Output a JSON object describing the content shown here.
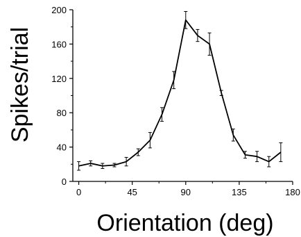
{
  "chart_data": {
    "type": "line",
    "title": "",
    "xlabel": "Orientation (deg)",
    "ylabel": "Spikes/trial",
    "xlim": [
      -5,
      180
    ],
    "ylim": [
      0,
      200
    ],
    "xticks": [
      0,
      45,
      90,
      135,
      180
    ],
    "yticks": [
      0,
      40,
      80,
      120,
      160,
      200
    ],
    "xtick_labels": [
      "0",
      "45",
      "90",
      "135",
      "180"
    ],
    "ytick_labels": [
      "0",
      "40",
      "80",
      "120",
      "160",
      "200"
    ],
    "grid": false,
    "legend": "none",
    "line_color": "#000000",
    "series": [
      {
        "x": [
          0,
          10,
          20,
          30,
          40,
          50,
          60,
          70,
          80,
          90,
          100,
          110,
          120,
          130,
          140,
          150,
          160,
          170
        ],
        "y": [
          18,
          21,
          18,
          19,
          23,
          34,
          48,
          78,
          118,
          188,
          170,
          160,
          103,
          54,
          31,
          29,
          23,
          34
        ],
        "error": [
          5,
          3,
          3,
          2,
          5,
          4,
          9,
          8,
          10,
          10,
          7,
          13,
          3,
          7,
          4,
          6,
          6,
          11
        ]
      }
    ]
  }
}
